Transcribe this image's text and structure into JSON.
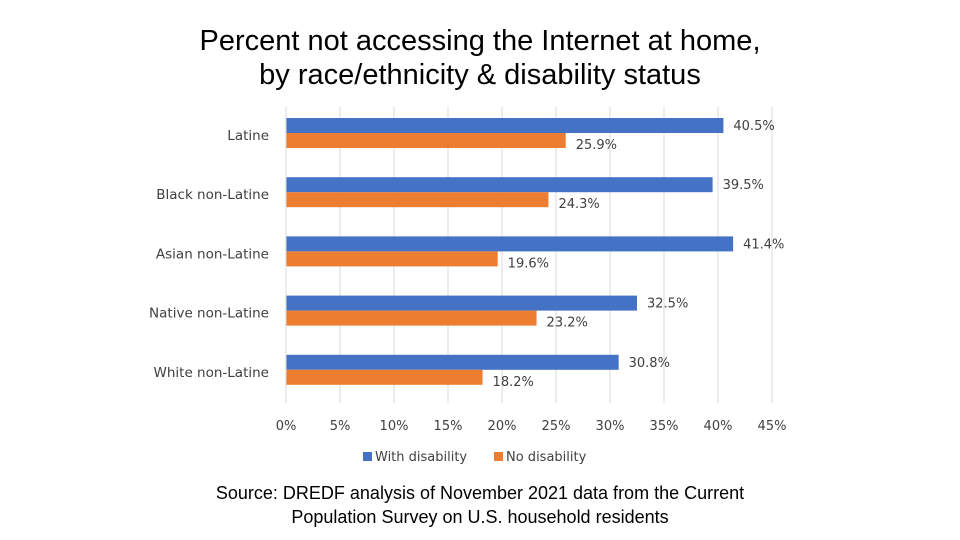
{
  "title": {
    "line1": "Percent not accessing the Internet at home,",
    "line2": "by race/ethnicity & disability status"
  },
  "source": {
    "line1": "Source: DREDF analysis of November 2021 data from the Current",
    "line2": "Population Survey on U.S. household residents"
  },
  "colors": {
    "with_disability": "#4472C4",
    "no_disability": "#ED7D31",
    "axis_text": "#404040",
    "gridline": "#D9D9D9"
  },
  "chart_data": {
    "type": "bar",
    "orientation": "horizontal",
    "title": "Percent not accessing the Internet at home, by race/ethnicity & disability status",
    "categories": [
      "Latine",
      "Black non-Latine",
      "Asian non-Latine",
      "Native non-Latine",
      "White non-Latine"
    ],
    "series": [
      {
        "name": "With disability",
        "values": [
          40.5,
          39.5,
          41.4,
          32.5,
          30.8
        ],
        "labels": [
          "40.5%",
          "39.5%",
          "41.4%",
          "32.5%",
          "30.8%"
        ]
      },
      {
        "name": "No disability",
        "values": [
          25.9,
          24.3,
          19.6,
          23.2,
          18.2
        ],
        "labels": [
          "25.9%",
          "24.3%",
          "19.6%",
          "23.2%",
          "18.2%"
        ]
      }
    ],
    "xlim": [
      0,
      45
    ],
    "xticks": [
      0,
      5,
      10,
      15,
      20,
      25,
      30,
      35,
      40,
      45
    ],
    "xtick_labels": [
      "0%",
      "5%",
      "10%",
      "15%",
      "20%",
      "25%",
      "30%",
      "35%",
      "40%",
      "45%"
    ],
    "grid": true,
    "legend": "bottom",
    "xlabel": "",
    "ylabel": ""
  }
}
